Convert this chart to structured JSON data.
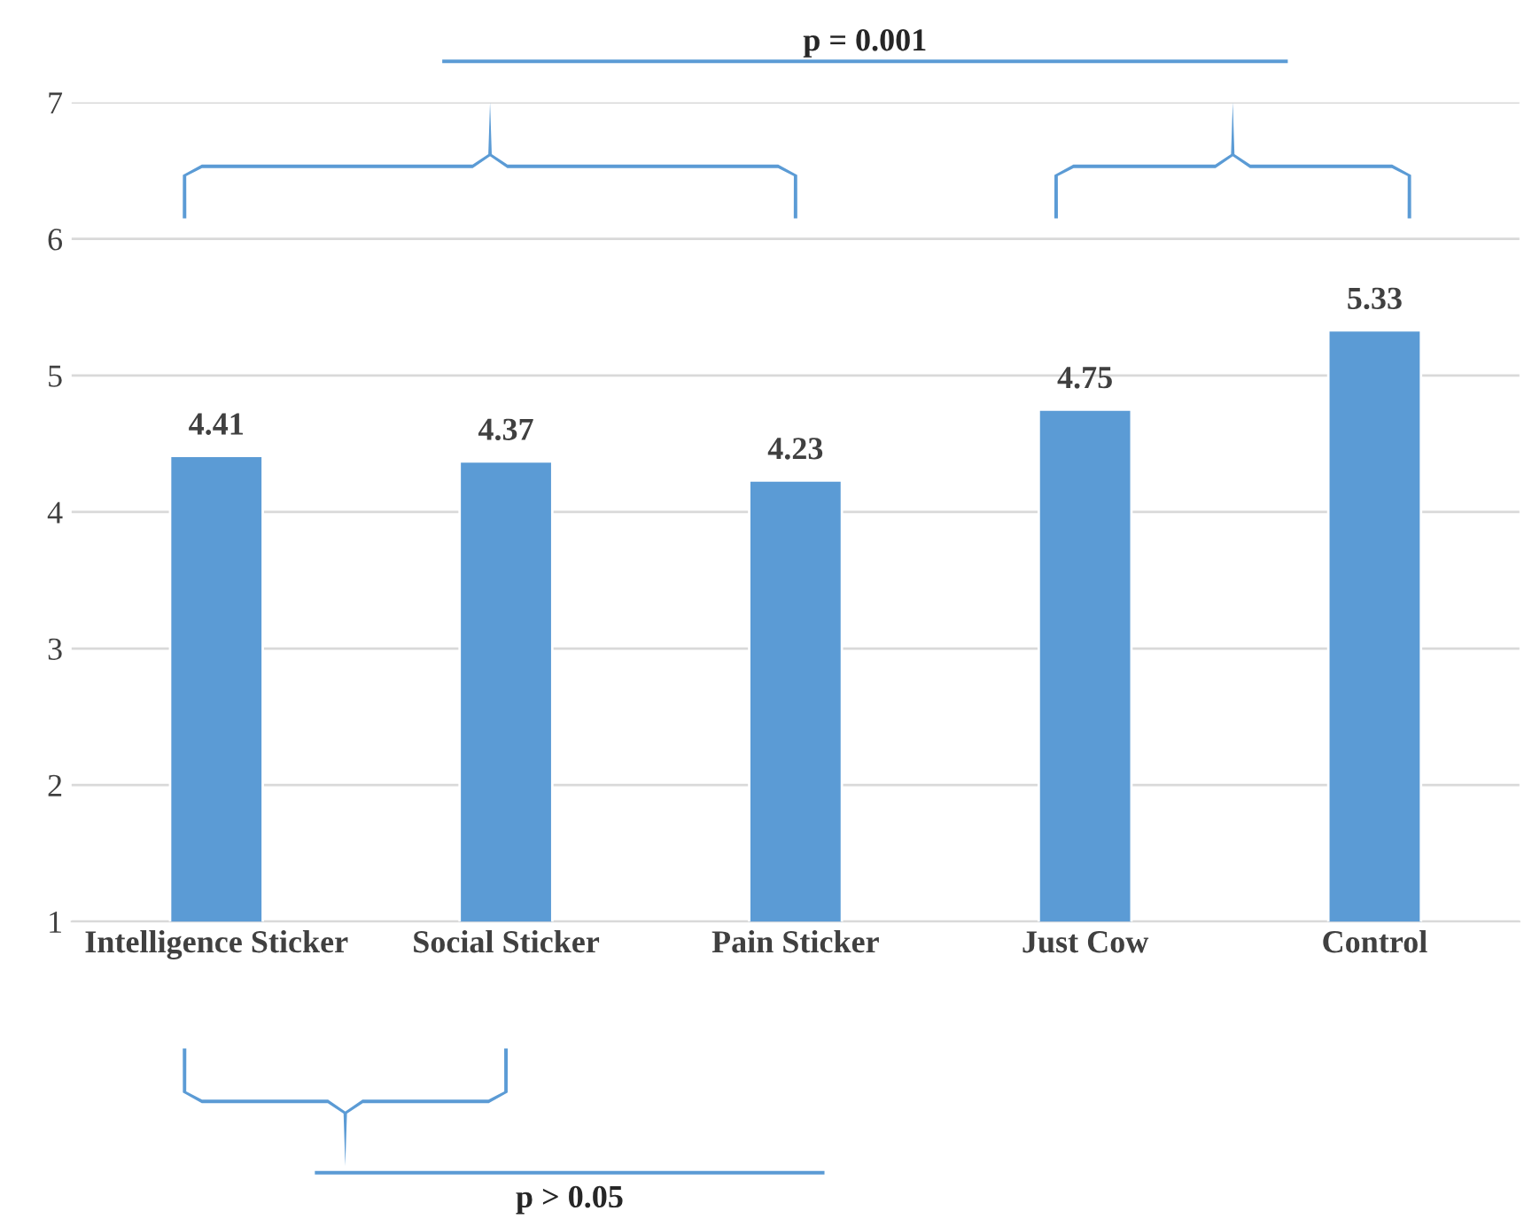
{
  "chart_data": {
    "type": "bar",
    "categories": [
      "Intelligence Sticker",
      "Social Sticker",
      "Pain Sticker",
      "Just Cow",
      "Control"
    ],
    "values": [
      4.41,
      4.37,
      4.23,
      4.75,
      5.33
    ],
    "color": "#5b9bd5",
    "ylim": [
      1,
      7
    ],
    "yticks": [
      1,
      2,
      3,
      4,
      5,
      6,
      7
    ],
    "grid": "y",
    "data_labels": true,
    "annotations": [
      "p = 0.001",
      "p > 0.05"
    ]
  }
}
